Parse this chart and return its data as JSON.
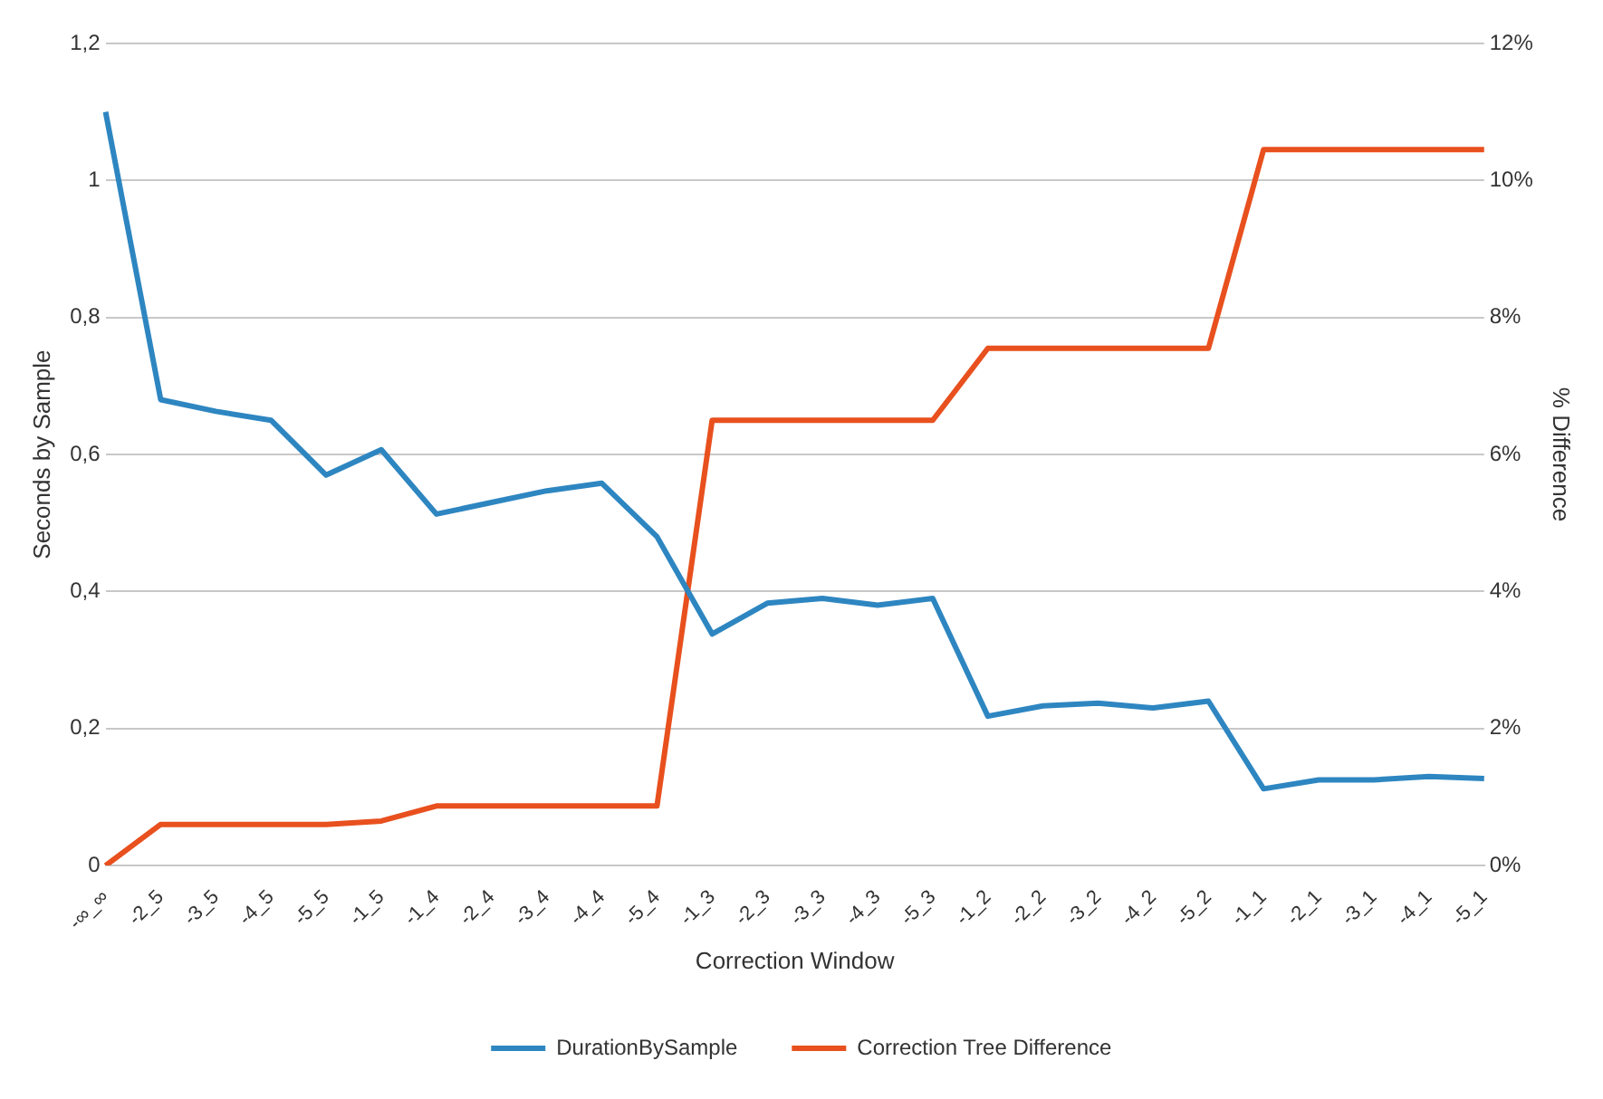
{
  "chart_data": {
    "type": "line",
    "xlabel": "Correction Window",
    "ylabel": "Seconds by Sample",
    "y2label": "% Difference",
    "categories": [
      "-∞_∞",
      "-2_5",
      "-3_5",
      "-4_5",
      "-5_5",
      "-1_5",
      "-1_4",
      "-2_4",
      "-3_4",
      "-4_4",
      "-5_4",
      "-1_3",
      "-2_3",
      "-3_3",
      "-4_3",
      "-5_3",
      "-1_2",
      "-2_2",
      "-3_2",
      "-4_2",
      "-5_2",
      "-1_1",
      "-2_1",
      "-3_1",
      "-4_1",
      "-5_1"
    ],
    "series": [
      {
        "name": "DurationBySample",
        "color": "#2e86c1",
        "values": [
          1.1,
          0.68,
          0.663,
          0.65,
          0.57,
          0.607,
          0.513,
          0.53,
          0.547,
          0.558,
          0.48,
          0.338,
          0.383,
          0.39,
          0.38,
          0.39,
          0.218,
          0.233,
          0.237,
          0.23,
          0.24,
          0.112,
          0.125,
          0.125,
          0.13,
          0.127
        ]
      },
      {
        "name": "Correction Tree Difference",
        "color": "#e8501e",
        "axis": "y2",
        "values": [
          0,
          0.6,
          0.6,
          0.6,
          0.6,
          0.65,
          0.87,
          0.87,
          0.87,
          0.87,
          0.87,
          6.5,
          6.5,
          6.5,
          6.5,
          6.5,
          7.55,
          7.55,
          7.55,
          7.55,
          7.55,
          10.45,
          10.45,
          10.45,
          10.45,
          10.45
        ]
      }
    ],
    "ylim": [
      0,
      1.2
    ],
    "yticks": [
      0,
      {
        "value": 0.2,
        "label": "0,2"
      },
      {
        "value": 0.4,
        "label": "0,4"
      },
      {
        "value": 0.6,
        "label": "0,6"
      },
      {
        "value": 0.8,
        "label": "0,8"
      },
      1,
      {
        "value": 1.2,
        "label": "1,2"
      }
    ],
    "y2lim": [
      0,
      12
    ],
    "y2ticks": [
      {
        "value": 0,
        "label": "0%"
      },
      {
        "value": 2,
        "label": "2%"
      },
      {
        "value": 4,
        "label": "4%"
      },
      {
        "value": 6,
        "label": "6%"
      },
      {
        "value": 8,
        "label": "8%"
      },
      {
        "value": 10,
        "label": "10%"
      },
      {
        "value": 12,
        "label": "12%"
      }
    ],
    "grid": "y",
    "legend": "bottom",
    "marker": "none",
    "line_style": "solid"
  }
}
